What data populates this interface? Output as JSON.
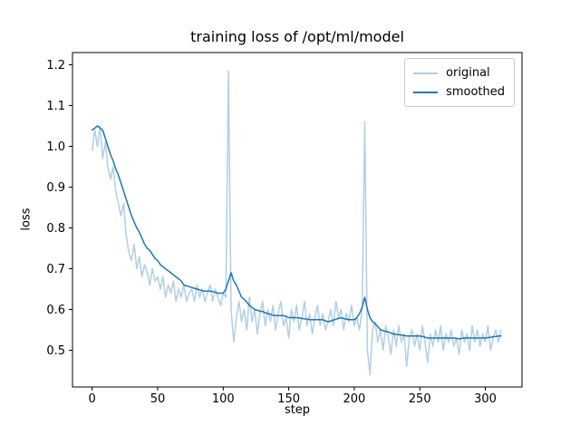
{
  "chart_data": {
    "type": "line",
    "title": "training loss of /opt/ml/model",
    "xlabel": "step",
    "ylabel": "loss",
    "xlim": [
      -15,
      328
    ],
    "ylim": [
      0.41,
      1.23
    ],
    "grid": false,
    "legend_position": "upper right",
    "background_color": "#ffffff",
    "axis_color": "#000000",
    "xtick_values": [
      0,
      50,
      100,
      150,
      200,
      250,
      300
    ],
    "xtick_labels": [
      "0",
      "50",
      "100",
      "150",
      "200",
      "250",
      "300"
    ],
    "ytick_values": [
      0.5,
      0.6,
      0.7,
      0.8,
      0.9,
      1.0,
      1.1,
      1.2
    ],
    "ytick_labels": [
      "0.5",
      "0.6",
      "0.7",
      "0.8",
      "0.9",
      "1.0",
      "1.1",
      "1.2"
    ],
    "x_start": 0,
    "x_step": 2,
    "series": [
      {
        "name": "original",
        "color": "#b0cfe5",
        "values": [
          0.99,
          1.04,
          1.0,
          1.05,
          0.97,
          1.01,
          0.95,
          0.92,
          0.95,
          0.89,
          0.86,
          0.83,
          0.86,
          0.78,
          0.74,
          0.72,
          0.76,
          0.7,
          0.73,
          0.68,
          0.71,
          0.69,
          0.66,
          0.7,
          0.67,
          0.68,
          0.65,
          0.68,
          0.63,
          0.66,
          0.64,
          0.67,
          0.62,
          0.65,
          0.63,
          0.66,
          0.62,
          0.64,
          0.65,
          0.62,
          0.66,
          0.63,
          0.65,
          0.62,
          0.64,
          0.66,
          0.62,
          0.65,
          0.63,
          0.61,
          0.64,
          0.63,
          1.185,
          0.6,
          0.52,
          0.58,
          0.62,
          0.57,
          0.6,
          0.55,
          0.63,
          0.57,
          0.6,
          0.54,
          0.59,
          0.62,
          0.56,
          0.6,
          0.57,
          0.61,
          0.55,
          0.59,
          0.62,
          0.56,
          0.58,
          0.53,
          0.6,
          0.57,
          0.61,
          0.55,
          0.58,
          0.62,
          0.56,
          0.59,
          0.54,
          0.58,
          0.61,
          0.56,
          0.59,
          0.55,
          0.57,
          0.6,
          0.56,
          0.62,
          0.58,
          0.6,
          0.55,
          0.59,
          0.57,
          0.61,
          0.56,
          0.58,
          0.55,
          0.6,
          1.06,
          0.5,
          0.44,
          0.55,
          0.57,
          0.52,
          0.55,
          0.5,
          0.56,
          0.53,
          0.49,
          0.55,
          0.51,
          0.56,
          0.52,
          0.54,
          0.46,
          0.53,
          0.55,
          0.51,
          0.54,
          0.5,
          0.56,
          0.52,
          0.47,
          0.54,
          0.51,
          0.55,
          0.52,
          0.56,
          0.5,
          0.54,
          0.52,
          0.55,
          0.51,
          0.53,
          0.49,
          0.55,
          0.52,
          0.54,
          0.5,
          0.56,
          0.52,
          0.55,
          0.51,
          0.54,
          0.52,
          0.56,
          0.5,
          0.53,
          0.55,
          0.52,
          0.55
        ]
      },
      {
        "name": "smoothed",
        "color": "#1f77b4",
        "values": [
          1.04,
          1.045,
          1.05,
          1.045,
          1.04,
          1.02,
          1.0,
          0.98,
          0.965,
          0.945,
          0.93,
          0.91,
          0.89,
          0.87,
          0.85,
          0.83,
          0.815,
          0.8,
          0.79,
          0.775,
          0.76,
          0.75,
          0.745,
          0.735,
          0.725,
          0.72,
          0.71,
          0.705,
          0.7,
          0.695,
          0.69,
          0.685,
          0.68,
          0.675,
          0.67,
          0.66,
          0.658,
          0.656,
          0.654,
          0.652,
          0.65,
          0.648,
          0.646,
          0.645,
          0.645,
          0.645,
          0.644,
          0.642,
          0.64,
          0.64,
          0.64,
          0.65,
          0.67,
          0.69,
          0.67,
          0.66,
          0.645,
          0.63,
          0.625,
          0.618,
          0.61,
          0.605,
          0.6,
          0.598,
          0.596,
          0.595,
          0.592,
          0.59,
          0.588,
          0.586,
          0.585,
          0.585,
          0.585,
          0.585,
          0.583,
          0.58,
          0.58,
          0.58,
          0.58,
          0.579,
          0.578,
          0.577,
          0.576,
          0.575,
          0.575,
          0.575,
          0.575,
          0.575,
          0.575,
          0.572,
          0.57,
          0.572,
          0.574,
          0.576,
          0.578,
          0.58,
          0.578,
          0.576,
          0.575,
          0.575,
          0.575,
          0.58,
          0.59,
          0.605,
          0.63,
          0.6,
          0.58,
          0.57,
          0.565,
          0.558,
          0.55,
          0.548,
          0.546,
          0.545,
          0.542,
          0.54,
          0.539,
          0.538,
          0.537,
          0.536,
          0.535,
          0.535,
          0.535,
          0.535,
          0.535,
          0.535,
          0.534,
          0.532,
          0.53,
          0.53,
          0.53,
          0.53,
          0.53,
          0.53,
          0.53,
          0.53,
          0.53,
          0.53,
          0.53,
          0.529,
          0.528,
          0.529,
          0.53,
          0.53,
          0.53,
          0.53,
          0.53,
          0.53,
          0.53,
          0.53,
          0.53,
          0.531,
          0.532,
          0.533,
          0.534,
          0.535,
          0.535
        ]
      }
    ]
  }
}
